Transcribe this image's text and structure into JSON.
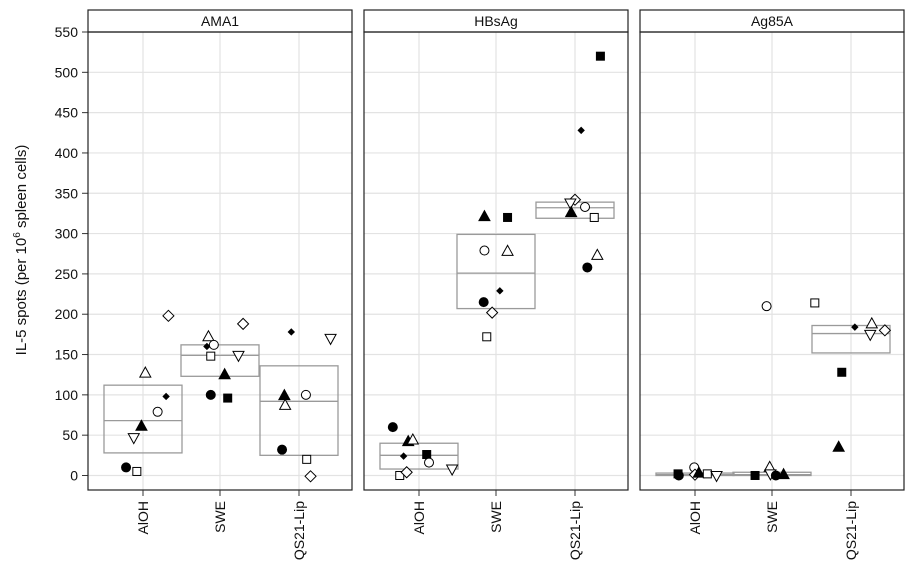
{
  "chart_data": {
    "type": "scatter",
    "ylabel_prefix": "IL-5 spots (per 10",
    "ylabel_sup": "6",
    "ylabel_suffix": " spleen cells)",
    "ylim": [
      -18,
      550
    ],
    "yticks": [
      0,
      50,
      100,
      150,
      200,
      250,
      300,
      350,
      400,
      450,
      500,
      550
    ],
    "grid": true,
    "categories": [
      "AlOH",
      "SWE",
      "QS21-Lip"
    ],
    "panels": [
      {
        "title": "AMA1",
        "boxes": [
          {
            "category": "AlOH",
            "q1": 28,
            "median": 68,
            "q3": 112
          },
          {
            "category": "SWE",
            "q1": 123,
            "median": 149,
            "q3": 162
          },
          {
            "category": "QS21-Lip",
            "q1": 25,
            "median": 92,
            "q3": 136
          }
        ],
        "points": [
          {
            "category": "AlOH",
            "marker": "circle-filled",
            "offset": -0.22,
            "value": 10
          },
          {
            "category": "AlOH",
            "marker": "square-open",
            "offset": -0.08,
            "value": 5
          },
          {
            "category": "AlOH",
            "marker": "triangle-down-open",
            "offset": -0.12,
            "value": 47
          },
          {
            "category": "AlOH",
            "marker": "triangle-filled",
            "offset": -0.02,
            "value": 61
          },
          {
            "category": "AlOH",
            "marker": "triangle-open",
            "offset": 0.03,
            "value": 127
          },
          {
            "category": "AlOH",
            "marker": "circle-open",
            "offset": 0.19,
            "value": 79
          },
          {
            "category": "AlOH",
            "marker": "diamond-filled",
            "offset": 0.3,
            "value": 98
          },
          {
            "category": "AlOH",
            "marker": "diamond-open",
            "offset": 0.33,
            "value": 198
          },
          {
            "category": "SWE",
            "marker": "triangle-open",
            "offset": -0.15,
            "value": 172
          },
          {
            "category": "SWE",
            "marker": "diamond-filled",
            "offset": -0.17,
            "value": 160
          },
          {
            "category": "SWE",
            "marker": "circle-open",
            "offset": -0.08,
            "value": 162
          },
          {
            "category": "SWE",
            "marker": "square-open",
            "offset": -0.12,
            "value": 148
          },
          {
            "category": "SWE",
            "marker": "circle-filled",
            "offset": -0.12,
            "value": 100
          },
          {
            "category": "SWE",
            "marker": "square-filled",
            "offset": 0.1,
            "value": 96
          },
          {
            "category": "SWE",
            "marker": "triangle-filled",
            "offset": 0.06,
            "value": 125
          },
          {
            "category": "SWE",
            "marker": "triangle-down-open",
            "offset": 0.24,
            "value": 149
          },
          {
            "category": "SWE",
            "marker": "diamond-open",
            "offset": 0.3,
            "value": 188
          },
          {
            "category": "QS21-Lip",
            "marker": "triangle-filled",
            "offset": -0.19,
            "value": 99
          },
          {
            "category": "QS21-Lip",
            "marker": "triangle-open",
            "offset": -0.18,
            "value": 87
          },
          {
            "category": "QS21-Lip",
            "marker": "circle-filled",
            "offset": -0.22,
            "value": 32
          },
          {
            "category": "QS21-Lip",
            "marker": "diamond-filled",
            "offset": -0.1,
            "value": 178
          },
          {
            "category": "QS21-Lip",
            "marker": "circle-open",
            "offset": 0.09,
            "value": 100
          },
          {
            "category": "QS21-Lip",
            "marker": "square-open",
            "offset": 0.1,
            "value": 20
          },
          {
            "category": "QS21-Lip",
            "marker": "diamond-open",
            "offset": 0.15,
            "value": -1
          },
          {
            "category": "QS21-Lip",
            "marker": "triangle-down-open",
            "offset": 0.41,
            "value": 170
          }
        ]
      },
      {
        "title": "HBsAg",
        "boxes": [
          {
            "category": "AlOH",
            "q1": 8,
            "median": 25,
            "q3": 40
          },
          {
            "category": "SWE",
            "q1": 207,
            "median": 251,
            "q3": 299
          },
          {
            "category": "QS21-Lip",
            "q1": 319,
            "median": 332,
            "q3": 339
          }
        ],
        "points": [
          {
            "category": "AlOH",
            "marker": "circle-filled",
            "offset": -0.34,
            "value": 60
          },
          {
            "category": "AlOH",
            "marker": "square-open",
            "offset": -0.25,
            "value": 0
          },
          {
            "category": "AlOH",
            "marker": "diamond-open",
            "offset": -0.16,
            "value": 4
          },
          {
            "category": "AlOH",
            "marker": "triangle-filled",
            "offset": -0.14,
            "value": 42
          },
          {
            "category": "AlOH",
            "marker": "triangle-open",
            "offset": -0.08,
            "value": 44
          },
          {
            "category": "AlOH",
            "marker": "diamond-filled",
            "offset": -0.2,
            "value": 24
          },
          {
            "category": "AlOH",
            "marker": "square-filled",
            "offset": 0.1,
            "value": 26
          },
          {
            "category": "AlOH",
            "marker": "circle-open",
            "offset": 0.13,
            "value": 16
          },
          {
            "category": "AlOH",
            "marker": "triangle-down-open",
            "offset": 0.43,
            "value": 8
          },
          {
            "category": "SWE",
            "marker": "triangle-filled",
            "offset": -0.15,
            "value": 321
          },
          {
            "category": "SWE",
            "marker": "square-filled",
            "offset": 0.15,
            "value": 320
          },
          {
            "category": "SWE",
            "marker": "circle-open",
            "offset": -0.15,
            "value": 279
          },
          {
            "category": "SWE",
            "marker": "triangle-open",
            "offset": 0.15,
            "value": 278
          },
          {
            "category": "SWE",
            "marker": "diamond-filled",
            "offset": 0.05,
            "value": 229
          },
          {
            "category": "SWE",
            "marker": "circle-filled",
            "offset": -0.16,
            "value": 215
          },
          {
            "category": "SWE",
            "marker": "diamond-open",
            "offset": -0.05,
            "value": 202
          },
          {
            "category": "SWE",
            "marker": "square-open",
            "offset": -0.12,
            "value": 172
          },
          {
            "category": "QS21-Lip",
            "marker": "square-filled",
            "offset": 0.33,
            "value": 520
          },
          {
            "category": "QS21-Lip",
            "marker": "diamond-filled",
            "offset": 0.08,
            "value": 428
          },
          {
            "category": "QS21-Lip",
            "marker": "diamond-open",
            "offset": 0.0,
            "value": 342
          },
          {
            "category": "QS21-Lip",
            "marker": "triangle-down-open",
            "offset": -0.06,
            "value": 338
          },
          {
            "category": "QS21-Lip",
            "marker": "circle-open",
            "offset": 0.13,
            "value": 333
          },
          {
            "category": "QS21-Lip",
            "marker": "triangle-filled",
            "offset": -0.05,
            "value": 326
          },
          {
            "category": "QS21-Lip",
            "marker": "square-open",
            "offset": 0.25,
            "value": 320
          },
          {
            "category": "QS21-Lip",
            "marker": "triangle-open",
            "offset": 0.29,
            "value": 273
          },
          {
            "category": "QS21-Lip",
            "marker": "circle-filled",
            "offset": 0.16,
            "value": 258
          }
        ]
      },
      {
        "title": "Ag85A",
        "boxes": [
          {
            "category": "AlOH",
            "q1": 0,
            "median": 1,
            "q3": 3
          },
          {
            "category": "SWE",
            "q1": 0,
            "median": 1,
            "q3": 4
          },
          {
            "category": "QS21-Lip",
            "q1": 152,
            "median": 176,
            "q3": 186
          }
        ],
        "points": [
          {
            "category": "AlOH",
            "marker": "square-filled",
            "offset": -0.22,
            "value": 2
          },
          {
            "category": "AlOH",
            "marker": "circle-filled",
            "offset": -0.21,
            "value": 0
          },
          {
            "category": "AlOH",
            "marker": "circle-open",
            "offset": -0.01,
            "value": 10
          },
          {
            "category": "AlOH",
            "marker": "diamond-open",
            "offset": 0.0,
            "value": 1
          },
          {
            "category": "AlOH",
            "marker": "triangle-filled",
            "offset": 0.05,
            "value": 3
          },
          {
            "category": "AlOH",
            "marker": "diamond-filled",
            "offset": 0.12,
            "value": 1
          },
          {
            "category": "AlOH",
            "marker": "square-open",
            "offset": 0.16,
            "value": 2
          },
          {
            "category": "AlOH",
            "marker": "triangle-down-open",
            "offset": 0.28,
            "value": 0
          },
          {
            "category": "SWE",
            "marker": "circle-open",
            "offset": -0.07,
            "value": 210
          },
          {
            "category": "SWE",
            "marker": "square-filled",
            "offset": -0.22,
            "value": 0
          },
          {
            "category": "SWE",
            "marker": "triangle-open",
            "offset": -0.03,
            "value": 10
          },
          {
            "category": "SWE",
            "marker": "triangle-down-open",
            "offset": -0.02,
            "value": 2
          },
          {
            "category": "SWE",
            "marker": "circle-filled",
            "offset": 0.05,
            "value": 0
          },
          {
            "category": "SWE",
            "marker": "triangle-filled",
            "offset": 0.15,
            "value": 1
          },
          {
            "category": "QS21-Lip",
            "marker": "square-open",
            "offset": -0.47,
            "value": 214
          },
          {
            "category": "QS21-Lip",
            "marker": "diamond-filled",
            "offset": 0.05,
            "value": 184
          },
          {
            "category": "QS21-Lip",
            "marker": "triangle-open",
            "offset": 0.27,
            "value": 188
          },
          {
            "category": "QS21-Lip",
            "marker": "triangle-down-open",
            "offset": 0.25,
            "value": 175
          },
          {
            "category": "QS21-Lip",
            "marker": "diamond-open",
            "offset": 0.44,
            "value": 180
          },
          {
            "category": "QS21-Lip",
            "marker": "square-filled",
            "offset": -0.12,
            "value": 128
          },
          {
            "category": "QS21-Lip",
            "marker": "triangle-filled",
            "offset": -0.16,
            "value": 35
          }
        ]
      }
    ]
  }
}
